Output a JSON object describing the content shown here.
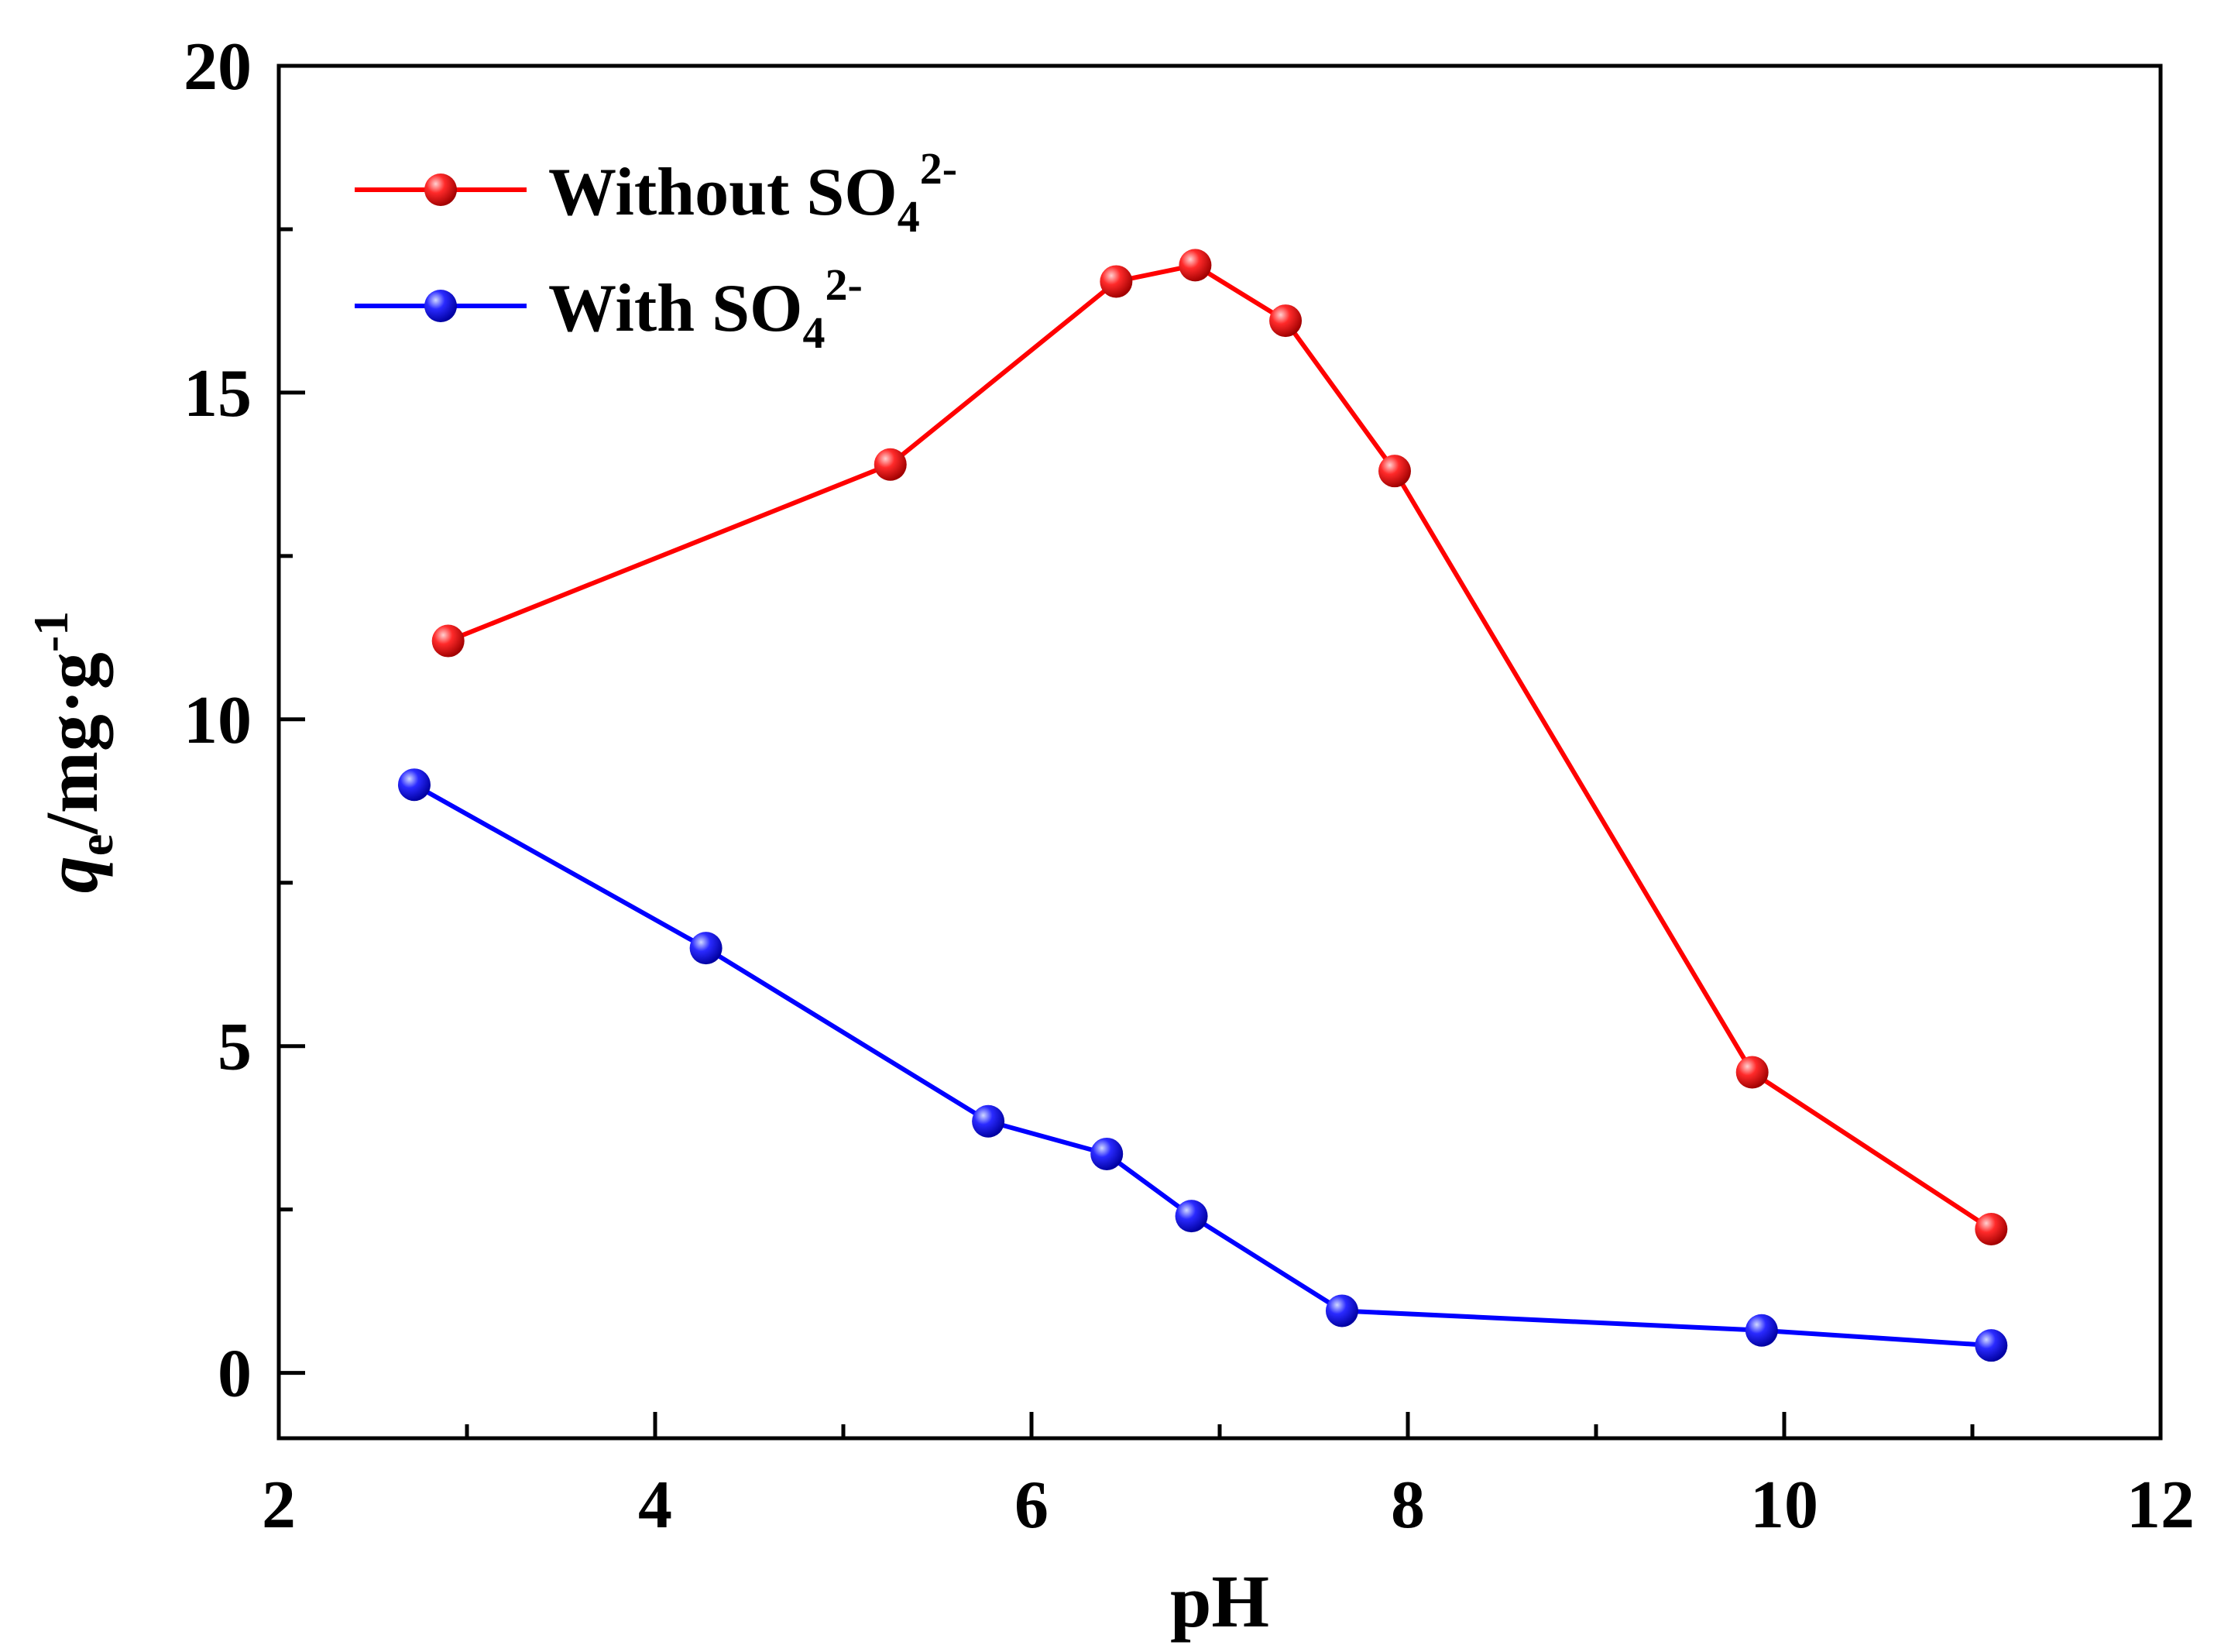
{
  "chart_data": {
    "type": "line",
    "title": "",
    "xlabel": "pH",
    "ylabel": {
      "var": "q",
      "sub": "e",
      "unit": "/mg·g",
      "sup": "-1"
    },
    "xlim": [
      2,
      12
    ],
    "ylim": [
      -1,
      20
    ],
    "xticks": [
      2,
      4,
      6,
      8,
      10,
      12
    ],
    "yticks": [
      0,
      5,
      10,
      15,
      20
    ],
    "xtick_labels": [
      "2",
      "4",
      "6",
      "8",
      "10",
      "12"
    ],
    "ytick_labels": [
      "0",
      "5",
      "10",
      "15",
      "20"
    ],
    "grid": false,
    "legend_position": "top-left",
    "series": [
      {
        "name": "Without SO4 2-",
        "legend": {
          "text": "Without SO",
          "sub": "4",
          "sup": "2-"
        },
        "color": "#ff0000",
        "x": [
          2.9,
          5.25,
          6.45,
          6.87,
          7.35,
          7.93,
          9.83,
          11.1
        ],
        "y": [
          11.2,
          13.9,
          16.7,
          16.95,
          16.1,
          13.8,
          4.6,
          2.2
        ]
      },
      {
        "name": "With SO4 2-",
        "legend": {
          "text": "With SO",
          "sub": "4",
          "sup": "2-"
        },
        "color": "#0000ff",
        "x": [
          2.72,
          4.27,
          5.77,
          6.4,
          6.85,
          7.65,
          9.88,
          11.1
        ],
        "y": [
          9.0,
          6.5,
          3.85,
          3.35,
          2.4,
          0.95,
          0.65,
          0.42
        ]
      }
    ]
  }
}
